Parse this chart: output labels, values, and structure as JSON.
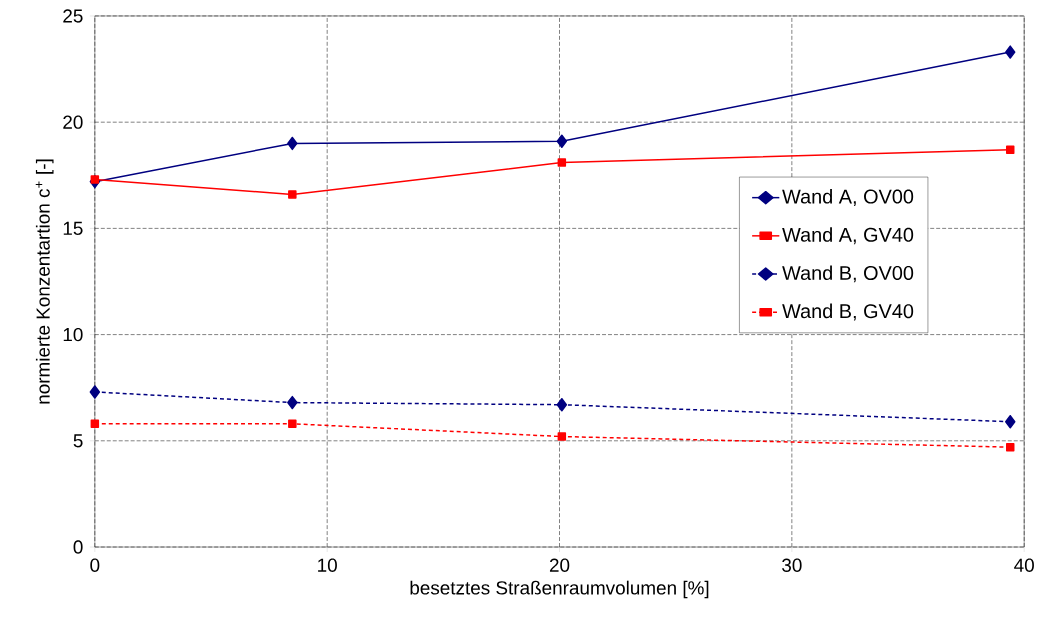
{
  "chart_data": {
    "type": "line",
    "xlabel": "besetztes Straßenraumvolumen [%]",
    "ylabel": "normierte Konzentartion c$^{+}$ [-]",
    "x": [
      0,
      8.5,
      20.1,
      39.4
    ],
    "series": [
      {
        "name": "Wand A, OV00",
        "color": "#000080",
        "marker": "diamond",
        "line_style": "solid",
        "values": [
          17.2,
          19.0,
          19.1,
          23.3
        ]
      },
      {
        "name": "Wand A, GV40",
        "color": "#ff0000",
        "marker": "square",
        "line_style": "solid",
        "values": [
          17.3,
          16.6,
          18.1,
          18.7
        ]
      },
      {
        "name": "Wand B, OV00",
        "color": "#000080",
        "marker": "diamond",
        "line_style": "dashed",
        "values": [
          7.3,
          6.8,
          6.7,
          5.9
        ]
      },
      {
        "name": "Wand B, GV40",
        "color": "#ff0000",
        "marker": "square",
        "line_style": "dashed",
        "values": [
          5.8,
          5.8,
          5.2,
          4.7
        ]
      }
    ],
    "xlim": [
      0,
      40
    ],
    "xticks": [
      0,
      10,
      20,
      30,
      40
    ],
    "ylim": [
      0,
      25
    ],
    "yticks": [
      0,
      5,
      10,
      15,
      20,
      25
    ],
    "grid": true,
    "legend": "right"
  }
}
